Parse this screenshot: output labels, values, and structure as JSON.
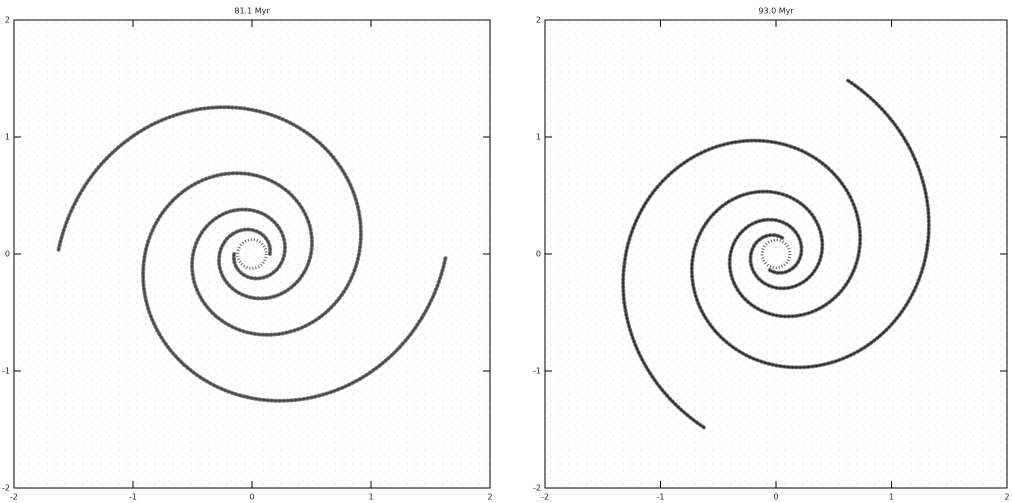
{
  "chart_data": [
    {
      "type": "scatter",
      "title": "81.1 Myr",
      "xlim": [
        -2,
        2
      ],
      "ylim": [
        -2,
        2
      ],
      "xticks": [
        -2,
        -1,
        0,
        1,
        2
      ],
      "yticks": [
        -2,
        -1,
        0,
        1,
        2
      ]
    },
    {
      "type": "scatter",
      "title": "93.0 Myr",
      "xlim": [
        -2,
        2
      ],
      "ylim": [
        -2,
        2
      ],
      "xticks": [
        -2,
        -1,
        0,
        1,
        2
      ],
      "yticks": [
        -2,
        -1,
        0,
        1,
        2
      ]
    }
  ]
}
